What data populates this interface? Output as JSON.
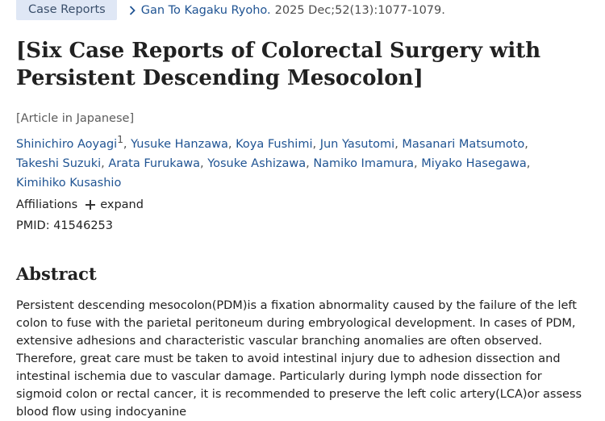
{
  "article_type_badge": "Case Reports",
  "journal": {
    "name": "Gan To Kagaku Ryoho.",
    "citation": "2025 Dec;52(13):1077-1079."
  },
  "title": "[Six Case Reports of Colorectal Surgery with Persistent Descending Mesocolon]",
  "language_note": "[Article in Japanese]",
  "authors": [
    {
      "name": "Shinichiro Aoyagi",
      "sup": "1"
    },
    {
      "name": "Yusuke Hanzawa"
    },
    {
      "name": "Koya Fushimi"
    },
    {
      "name": "Jun Yasutomi"
    },
    {
      "name": "Masanari Matsumoto"
    },
    {
      "name": "Takeshi Suzuki"
    },
    {
      "name": "Arata Furukawa"
    },
    {
      "name": "Yosuke Ashizawa"
    },
    {
      "name": "Namiko Imamura"
    },
    {
      "name": "Miyako Hasegawa"
    },
    {
      "name": "Kimihiko Kusashio"
    }
  ],
  "affiliations": {
    "label": "Affiliations",
    "expand_label": "expand"
  },
  "pmid": "PMID: 41546253",
  "abstract": {
    "heading": "Abstract",
    "text": "Persistent descending mesocolon(PDM)is a fixation abnormality caused by the failure of the left colon to fuse with the parietal peritoneum during embryological development. In cases of PDM, extensive adhesions and characteristic vascular branching anomalies are often observed. Therefore, great care must be taken to avoid intestinal injury due to adhesion dissection and intestinal ischemia due to vascular damage. Particularly during lymph node dissection for sigmoid colon or rectal cancer, it is recommended to preserve the left colic artery(LCA)or assess blood flow using indocyanine"
  },
  "colors": {
    "link": "#205493",
    "badge_bg": "#dfe7f5",
    "text": "#212121"
  },
  "icons": {
    "journal_chevron": "chevron-right-icon",
    "expand": "plus-icon"
  }
}
